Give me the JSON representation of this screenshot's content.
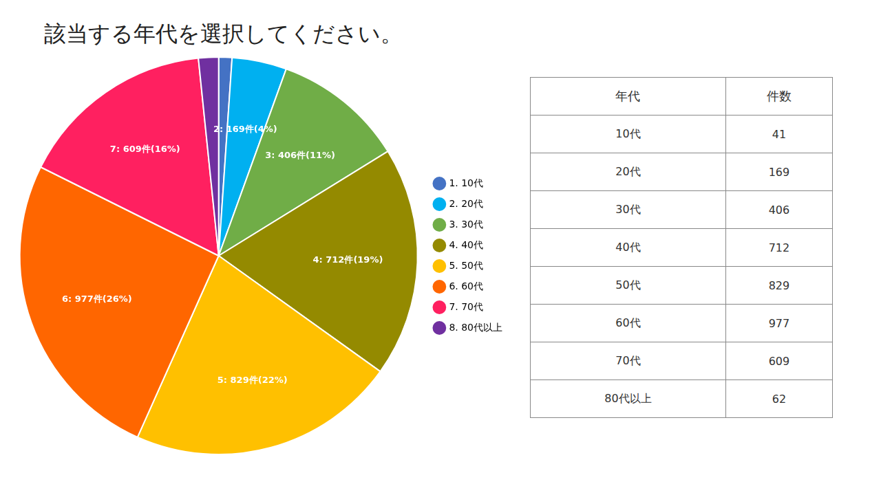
{
  "chart_data": {
    "type": "pie",
    "title": "該当する年代を選択してください。",
    "categories": [
      "10代",
      "20代",
      "30代",
      "40代",
      "50代",
      "60代",
      "70代",
      "80代以上"
    ],
    "values": [
      41,
      169,
      406,
      712,
      829,
      977,
      609,
      62
    ],
    "colors": [
      "#4472C4",
      "#00B0F0",
      "#70AD47",
      "#948A00",
      "#FFC000",
      "#FF6600",
      "#FF2060",
      "#7030A0"
    ],
    "data_labels": true,
    "value_labels": [
      null,
      "2: 169件(4%)",
      "3: 406件(11%)",
      "4: 712件(19%)",
      "5: 829件(22%)",
      "6: 977件(26%)",
      "7: 609件(16%)",
      null
    ],
    "legend": "right",
    "legend_labels": [
      "1. 10代",
      "2. 20代",
      "3. 30代",
      "4. 40代",
      "5. 50代",
      "6. 60代",
      "7. 70代",
      "8. 80代以上"
    ],
    "table_headers": [
      "年代",
      "件数"
    ]
  }
}
